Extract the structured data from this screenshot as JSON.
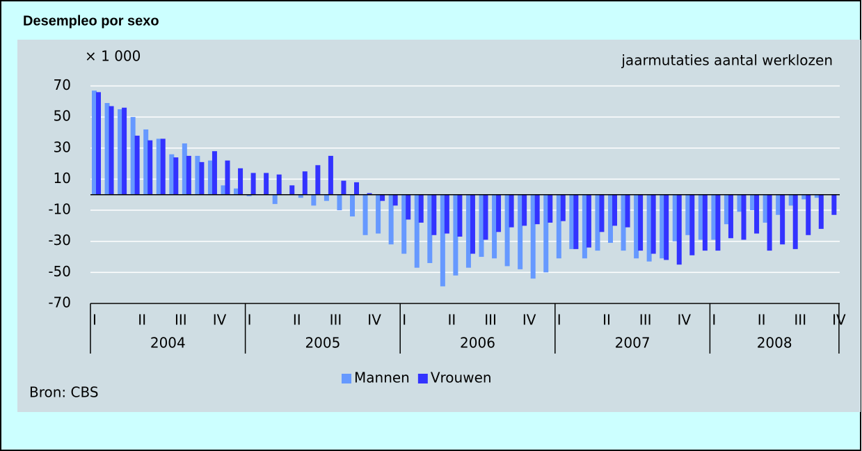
{
  "chart_data": {
    "type": "bar",
    "page_title": "Desempleo por sexo",
    "unit_label": "× 1 000",
    "title": "jaarmutaties aantal werklozen",
    "source": "Bron: CBS",
    "categories": [
      "I",
      null,
      null,
      "II",
      null,
      null,
      "III",
      null,
      null,
      "IV",
      null,
      null,
      "I",
      null,
      null,
      "II",
      null,
      null,
      "III",
      null,
      null,
      "IV",
      null,
      null,
      "I",
      null,
      null,
      "II",
      null,
      null,
      "III",
      null,
      null,
      "IV",
      null,
      null,
      "I",
      null,
      null,
      "II",
      null,
      null,
      "III",
      null,
      null,
      "IV",
      null,
      null,
      "I",
      null,
      null,
      "II",
      null,
      null,
      "III",
      null,
      null,
      "IV"
    ],
    "years": [
      "2004",
      "2005",
      "2006",
      "2007",
      "2008"
    ],
    "series": [
      {
        "name": "Mannen",
        "color": "#6699ff",
        "values": [
          67,
          59,
          55,
          50,
          42,
          36,
          26,
          33,
          25,
          22,
          6,
          4,
          -1,
          0,
          -6,
          0,
          -2,
          -7,
          -4,
          -10,
          -14,
          -26,
          -25,
          -32,
          -38,
          -47,
          -44,
          -59,
          -52,
          -47,
          -40,
          -41,
          -46,
          -48,
          -54,
          -50,
          -41,
          -35,
          -41,
          -36,
          -31,
          -36,
          -41,
          -43,
          -41,
          -30,
          -26,
          -29,
          -29,
          -19,
          -11,
          -10,
          -18,
          -13,
          -7,
          -3,
          -2,
          0
        ]
      },
      {
        "name": "Vrouwen",
        "color": "#3333ff",
        "values": [
          66,
          57,
          56,
          38,
          35,
          36,
          24,
          25,
          21,
          28,
          22,
          17,
          14,
          14,
          13,
          6,
          15,
          19,
          25,
          9,
          8,
          1,
          -4,
          -7,
          -16,
          -18,
          -26,
          -25,
          -27,
          -38,
          -29,
          -24,
          -21,
          -20,
          -19,
          -18,
          -17,
          -35,
          -34,
          -24,
          -20,
          -21,
          -36,
          -38,
          -42,
          -45,
          -39,
          -36,
          -36,
          -28,
          -29,
          -25,
          -36,
          -32,
          -35,
          -26,
          -22,
          -13
        ]
      }
    ],
    "ylim": [
      -70,
      72
    ],
    "yticks": [
      70,
      50,
      30,
      10,
      -10,
      -30,
      -50,
      -70
    ],
    "grid": true,
    "legend": "bottom"
  }
}
